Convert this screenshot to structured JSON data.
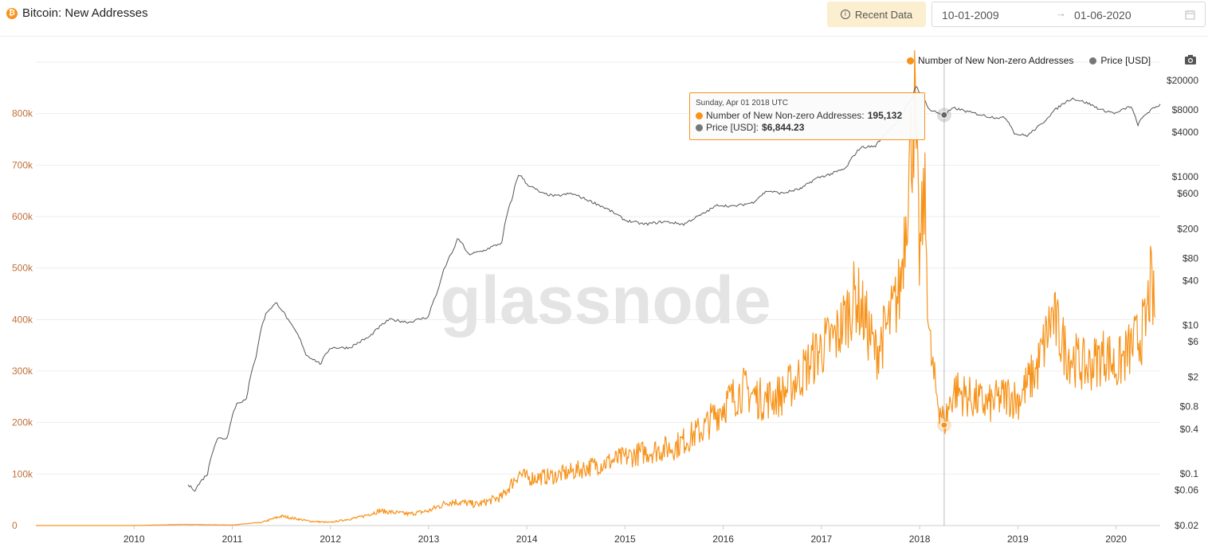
{
  "header": {
    "title": "Bitcoin: New Addresses",
    "recent_label": "Recent Data",
    "date_start": "10-01-2009",
    "date_end": "01-06-2020",
    "arrow": "→"
  },
  "legend": {
    "series1": "Number of New Non-zero Addresses",
    "series2": "Price [USD]"
  },
  "watermark": "glassnode",
  "tooltip": {
    "date": "Sunday, Apr 01 2018 UTC",
    "s1_label": "Number of New Non-zero Addresses:",
    "s1_value": "195,132",
    "s2_label": "Price [USD]:",
    "s2_value": "$6,844.23"
  },
  "colors": {
    "addresses": "#f7931a",
    "price": "#555555",
    "accent": "#f7931a"
  },
  "chart_data": {
    "type": "line",
    "x_ticks": [
      "2010",
      "2011",
      "2012",
      "2013",
      "2014",
      "2015",
      "2016",
      "2017",
      "2018",
      "2019",
      "2020"
    ],
    "y_left_ticks": [
      {
        "label": "0",
        "value": 0
      },
      {
        "label": "100k",
        "value": 100000
      },
      {
        "label": "200k",
        "value": 200000
      },
      {
        "label": "300k",
        "value": 300000
      },
      {
        "label": "400k",
        "value": 400000
      },
      {
        "label": "500k",
        "value": 500000
      },
      {
        "label": "600k",
        "value": 600000
      },
      {
        "label": "700k",
        "value": 700000
      },
      {
        "label": "800k",
        "value": 800000
      }
    ],
    "y_right_ticks": [
      {
        "label": "$20000",
        "value": 20000
      },
      {
        "label": "$8000",
        "value": 8000
      },
      {
        "label": "$4000",
        "value": 4000
      },
      {
        "label": "$1000",
        "value": 1000
      },
      {
        "label": "$600",
        "value": 600
      },
      {
        "label": "$200",
        "value": 200
      },
      {
        "label": "$80",
        "value": 80
      },
      {
        "label": "$40",
        "value": 40
      },
      {
        "label": "$10",
        "value": 10
      },
      {
        "label": "$6",
        "value": 6
      },
      {
        "label": "$2",
        "value": 2
      },
      {
        "label": "$0.8",
        "value": 0.8
      },
      {
        "label": "$0.4",
        "value": 0.4
      },
      {
        "label": "$0.1",
        "value": 0.1
      },
      {
        "label": "$0.06",
        "value": 0.06
      },
      {
        "label": "$0.02",
        "value": 0.02
      }
    ],
    "x_range": [
      2009.0,
      2020.45
    ],
    "y_left_range": [
      0,
      900000
    ],
    "y_right_range_log": [
      0.02,
      20000
    ],
    "y_right_scale": "log",
    "grid": true,
    "legend_position": "top-right",
    "series": [
      {
        "name": "Number of New Non-zero Addresses",
        "axis": "left",
        "x": [
          2009.0,
          2010.0,
          2010.5,
          2011.0,
          2011.3,
          2011.5,
          2011.8,
          2012.0,
          2012.3,
          2012.5,
          2012.8,
          2013.0,
          2013.2,
          2013.3,
          2013.5,
          2013.75,
          2013.92,
          2014.0,
          2014.3,
          2014.6,
          2014.9,
          2015.2,
          2015.5,
          2015.8,
          2016.0,
          2016.2,
          2016.4,
          2016.6,
          2016.8,
          2017.0,
          2017.15,
          2017.35,
          2017.45,
          2017.55,
          2017.7,
          2017.8,
          2017.9,
          2017.95,
          2018.0,
          2018.05,
          2018.1,
          2018.15,
          2018.25,
          2018.35,
          2018.5,
          2018.7,
          2018.9,
          2019.0,
          2019.2,
          2019.35,
          2019.5,
          2019.7,
          2019.9,
          2020.0,
          2020.2,
          2020.3,
          2020.35,
          2020.4
        ],
        "values": [
          0,
          0,
          2000,
          1000,
          6000,
          18000,
          8000,
          6000,
          16000,
          28000,
          22000,
          28000,
          45000,
          45000,
          40000,
          55000,
          100000,
          90000,
          95000,
          110000,
          125000,
          140000,
          150000,
          185000,
          230000,
          260000,
          240000,
          250000,
          290000,
          340000,
          360000,
          440000,
          390000,
          330000,
          390000,
          450000,
          700000,
          800000,
          500000,
          640000,
          350000,
          270000,
          195132,
          260000,
          245000,
          230000,
          250000,
          240000,
          300000,
          400000,
          330000,
          300000,
          330000,
          300000,
          350000,
          380000,
          460000,
          400000
        ]
      },
      {
        "name": "Price [USD]",
        "axis": "right",
        "x": [
          2010.55,
          2010.62,
          2010.75,
          2010.85,
          2010.95,
          2011.05,
          2011.15,
          2011.25,
          2011.35,
          2011.45,
          2011.58,
          2011.75,
          2011.9,
          2012.0,
          2012.2,
          2012.4,
          2012.6,
          2012.8,
          2013.0,
          2013.1,
          2013.25,
          2013.3,
          2013.4,
          2013.55,
          2013.75,
          2013.85,
          2013.92,
          2014.0,
          2014.15,
          2014.3,
          2014.45,
          2014.6,
          2014.8,
          2015.0,
          2015.2,
          2015.4,
          2015.6,
          2015.8,
          2015.95,
          2016.1,
          2016.3,
          2016.45,
          2016.6,
          2016.8,
          2016.95,
          2017.1,
          2017.25,
          2017.4,
          2017.55,
          2017.7,
          2017.8,
          2017.92,
          2017.96,
          2018.0,
          2018.1,
          2018.25,
          2018.35,
          2018.5,
          2018.7,
          2018.88,
          2018.97,
          2019.1,
          2019.25,
          2019.45,
          2019.55,
          2019.7,
          2019.85,
          2020.0,
          2020.15,
          2020.22,
          2020.3,
          2020.45
        ],
        "values": [
          0.07,
          0.06,
          0.1,
          0.3,
          0.3,
          0.9,
          1.0,
          4,
          15,
          20,
          11,
          4,
          3,
          5,
          5,
          7,
          12,
          11,
          13,
          30,
          100,
          150,
          90,
          100,
          130,
          500,
          1100,
          800,
          600,
          550,
          600,
          500,
          380,
          260,
          230,
          250,
          230,
          320,
          420,
          400,
          450,
          650,
          600,
          700,
          960,
          1100,
          1300,
          2500,
          2600,
          4400,
          6000,
          11000,
          17000,
          14000,
          8000,
          6844.23,
          8500,
          7500,
          6500,
          6200,
          3800,
          3600,
          5200,
          9500,
          11500,
          10000,
          8000,
          7200,
          9000,
          5000,
          7000,
          9500
        ]
      }
    ]
  }
}
